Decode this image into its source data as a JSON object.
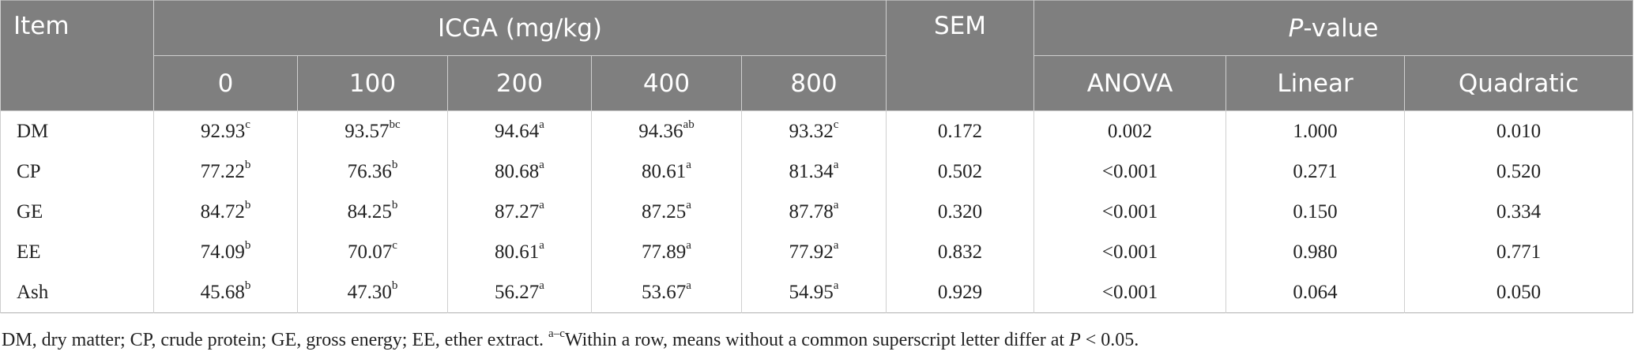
{
  "header": {
    "item": "Item",
    "icga": "ICGA (mg/kg)",
    "sem": "SEM",
    "p_value": [
      "P",
      "-value"
    ],
    "doses": [
      "0",
      "100",
      "200",
      "400",
      "800"
    ],
    "tests": [
      "ANOVA",
      "Linear",
      "Quadratic"
    ]
  },
  "table": {
    "rows": [
      [
        "DM",
        {
          "value": "92.93",
          "sup": "c"
        },
        {
          "value": "93.57",
          "sup": "bc"
        },
        {
          "value": "94.64",
          "sup": "a"
        },
        {
          "value": "94.36",
          "sup": "ab"
        },
        {
          "value": "93.32",
          "sup": "c"
        },
        "0.172",
        "0.002",
        "1.000",
        "0.010"
      ],
      [
        "CP",
        {
          "value": "77.22",
          "sup": "b"
        },
        {
          "value": "76.36",
          "sup": "b"
        },
        {
          "value": "80.68",
          "sup": "a"
        },
        {
          "value": "80.61",
          "sup": "a"
        },
        {
          "value": "81.34",
          "sup": "a"
        },
        "0.502",
        "<0.001",
        "0.271",
        "0.520"
      ],
      [
        "GE",
        {
          "value": "84.72",
          "sup": "b"
        },
        {
          "value": "84.25",
          "sup": "b"
        },
        {
          "value": "87.27",
          "sup": "a"
        },
        {
          "value": "87.25",
          "sup": "a"
        },
        {
          "value": "87.78",
          "sup": "a"
        },
        "0.320",
        "<0.001",
        "0.150",
        "0.334"
      ],
      [
        "EE",
        {
          "value": "74.09",
          "sup": "b"
        },
        {
          "value": "70.07",
          "sup": "c"
        },
        {
          "value": "80.61",
          "sup": "a"
        },
        {
          "value": "77.89",
          "sup": "a"
        },
        {
          "value": "77.92",
          "sup": "a"
        },
        "0.832",
        "<0.001",
        "0.980",
        "0.771"
      ],
      [
        "Ash",
        {
          "value": "45.68",
          "sup": "b"
        },
        {
          "value": "47.30",
          "sup": "b"
        },
        {
          "value": "56.27",
          "sup": "a"
        },
        {
          "value": "53.67",
          "sup": "a"
        },
        {
          "value": "54.95",
          "sup": "a"
        },
        "0.929",
        "<0.001",
        "0.064",
        "0.050"
      ]
    ]
  },
  "footnote": {
    "text": "DM, dry matter; CP, crude protein; GE, gross energy; EE, ether extract. ",
    "sup": "a–c",
    "text2": "Within a row, means without a common superscript letter differ at ",
    "italic": "P",
    "text3": " < 0.05."
  }
}
